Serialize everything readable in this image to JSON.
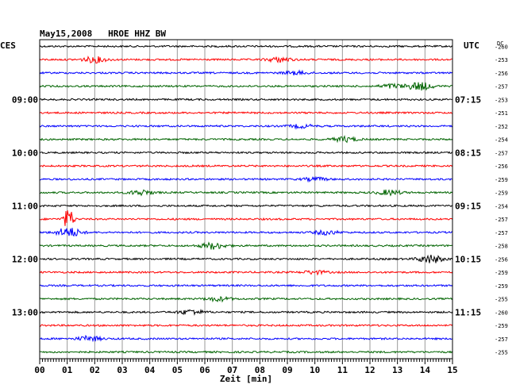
{
  "header": {
    "title": "May15,2008   HROE HHZ BW",
    "left_zone": "CES",
    "right_zone": "UTC",
    "dc_label": "DC"
  },
  "chart_data": {
    "type": "line",
    "title": "May15,2008   HROE HHZ BW",
    "xlabel": "Zeit [min]",
    "xlim": [
      0,
      15
    ],
    "x_ticks": [
      "00",
      "01",
      "02",
      "03",
      "04",
      "05",
      "06",
      "07",
      "08",
      "09",
      "10",
      "11",
      "12",
      "13",
      "14",
      "15"
    ],
    "grid": true,
    "trace_colors": [
      "#000000",
      "#ff0000",
      "#0000ff",
      "#006400"
    ],
    "left_time_labels": [
      {
        "row": 4,
        "text": "09:00"
      },
      {
        "row": 8,
        "text": "10:00"
      },
      {
        "row": 12,
        "text": "11:00"
      },
      {
        "row": 16,
        "text": "12:00"
      },
      {
        "row": 20,
        "text": "13:00"
      }
    ],
    "right_time_labels": [
      {
        "row": 4,
        "text": "07:15"
      },
      {
        "row": 8,
        "text": "08:15"
      },
      {
        "row": 12,
        "text": "09:15"
      },
      {
        "row": 16,
        "text": "10:15"
      },
      {
        "row": 20,
        "text": "11:15"
      }
    ],
    "dc_offsets": [
      "-260",
      "-253",
      "-256",
      "-257",
      "-253",
      "-251",
      "-252",
      "-254",
      "-257",
      "-256",
      "-259",
      "-259",
      "-254",
      "-257",
      "-257",
      "-258",
      "-256",
      "-259",
      "-259",
      "-255",
      "-260",
      "-259",
      "-257",
      "-255"
    ],
    "events": [
      {
        "row": 1,
        "minute": 2.0,
        "amplitude": 3.5
      },
      {
        "row": 1,
        "minute": 8.7,
        "amplitude": 3
      },
      {
        "row": 2,
        "minute": 9.3,
        "amplitude": 2
      },
      {
        "row": 3,
        "minute": 12.8,
        "amplitude": 2.5
      },
      {
        "row": 3,
        "minute": 13.8,
        "amplitude": 5
      },
      {
        "row": 6,
        "minute": 9.5,
        "amplitude": 2
      },
      {
        "row": 7,
        "minute": 11.1,
        "amplitude": 3
      },
      {
        "row": 10,
        "minute": 10.0,
        "amplitude": 2
      },
      {
        "row": 11,
        "minute": 3.7,
        "amplitude": 3
      },
      {
        "row": 11,
        "minute": 12.7,
        "amplitude": 3
      },
      {
        "row": 13,
        "minute": 1.05,
        "amplitude": 14
      },
      {
        "row": 14,
        "minute": 1.05,
        "amplitude": 6
      },
      {
        "row": 14,
        "minute": 10.4,
        "amplitude": 2.5
      },
      {
        "row": 15,
        "minute": 6.3,
        "amplitude": 4
      },
      {
        "row": 16,
        "minute": 14.2,
        "amplitude": 5
      },
      {
        "row": 17,
        "minute": 10.0,
        "amplitude": 2
      },
      {
        "row": 19,
        "minute": 6.5,
        "amplitude": 2.5
      },
      {
        "row": 20,
        "minute": 5.5,
        "amplitude": 3
      },
      {
        "row": 22,
        "minute": 1.8,
        "amplitude": 3
      }
    ]
  }
}
